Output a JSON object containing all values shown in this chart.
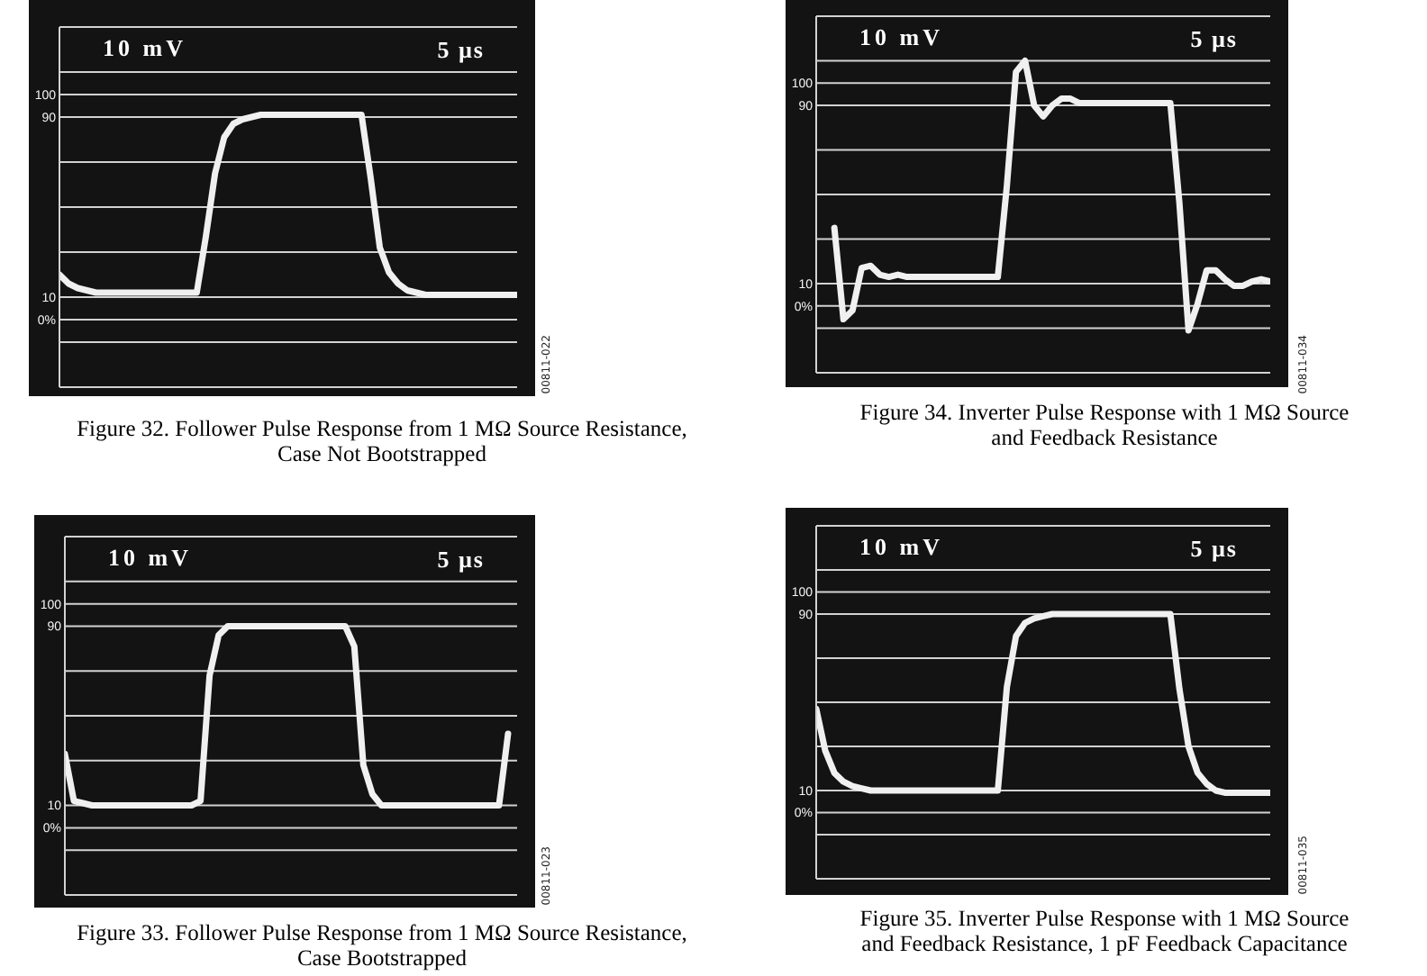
{
  "chart_data": [
    {
      "type": "line",
      "title": "Figure 32. Follower Pulse Response from 1 MΩ Source Resistance,\nCase Not Bootstrapped",
      "annotations": [
        "10 mV",
        "5 µs",
        "00811-022"
      ],
      "categories": [
        null,
        null,
        null,
        null,
        null,
        null,
        null,
        null,
        null,
        null,
        null,
        null,
        null,
        null,
        null,
        null,
        null,
        null,
        null,
        null,
        null,
        null,
        null,
        null,
        null,
        null,
        null,
        null,
        null,
        null,
        null,
        null,
        null,
        null,
        null,
        null,
        null,
        null,
        null,
        null,
        null,
        null,
        null,
        null,
        null,
        null,
        null,
        null,
        null,
        null,
        null
      ],
      "series": [
        {
          "color": "#f0f0f0",
          "values": [
            20,
            16,
            14,
            13,
            12,
            12,
            12,
            12,
            12,
            12,
            12,
            12,
            12,
            12,
            12,
            12,
            37,
            65,
            81,
            87,
            89,
            90,
            91,
            91,
            91,
            91,
            91,
            91,
            91,
            91,
            91,
            91,
            91,
            91,
            63,
            32,
            21,
            16,
            13,
            12,
            11,
            11,
            11,
            11,
            11,
            11,
            11,
            11,
            11,
            11,
            11
          ]
        }
      ],
      "ylim": [
        -30,
        130
      ],
      "yticks": [
        {
          "value": -30,
          "label": null
        },
        {
          "value": -10,
          "label": null
        },
        {
          "value": 0,
          "label": "0%"
        },
        10,
        {
          "value": 30,
          "label": null
        },
        {
          "value": 50,
          "label": null
        },
        {
          "value": 70,
          "label": null
        },
        90,
        100,
        {
          "value": 110,
          "label": null
        },
        {
          "value": 130,
          "label": null
        }
      ],
      "grid": true,
      "marker": "none",
      "tick_labels": "y"
    },
    {
      "type": "line",
      "title": "Figure 34. Inverter Pulse Response with 1 MΩ Source\nand Feedback Resistance",
      "annotations": [
        "10 mV",
        "5 µs",
        "00811-034"
      ],
      "categories": [
        null,
        null,
        null,
        null,
        null,
        null,
        null,
        null,
        null,
        null,
        null,
        null,
        null,
        null,
        null,
        null,
        null,
        null,
        null,
        null,
        null,
        null,
        null,
        null,
        null,
        null,
        null,
        null,
        null,
        null,
        null,
        null,
        null,
        null,
        null,
        null,
        null,
        null,
        null,
        null,
        null,
        null,
        null,
        null,
        null,
        null,
        null,
        null,
        null,
        null,
        null
      ],
      "series": [
        {
          "color": "#f0f0f0",
          "values": [
            null,
            null,
            35,
            -6,
            -2,
            17,
            18,
            14,
            13,
            14,
            13,
            13,
            13,
            13,
            13,
            13,
            13,
            13,
            13,
            13,
            13,
            54,
            105,
            110,
            90,
            85,
            90,
            93,
            93,
            91,
            91,
            91,
            91,
            91,
            91,
            91,
            91,
            91,
            91,
            91,
            46,
            -11,
            1,
            16,
            16,
            12,
            9,
            9,
            11,
            12,
            11
          ]
        }
      ],
      "ylim": [
        -30,
        130
      ],
      "yticks": [
        {
          "value": -30,
          "label": null
        },
        {
          "value": -10,
          "label": null
        },
        {
          "value": 0,
          "label": "0%"
        },
        10,
        {
          "value": 30,
          "label": null
        },
        {
          "value": 50,
          "label": null
        },
        {
          "value": 70,
          "label": null
        },
        90,
        100,
        {
          "value": 110,
          "label": null
        },
        {
          "value": 130,
          "label": null
        }
      ],
      "grid": true,
      "marker": "none",
      "tick_labels": "y"
    },
    {
      "type": "line",
      "title": "Figure 33. Follower Pulse Response from 1 MΩ Source Resistance,\nCase Bootstrapped",
      "annotations": [
        "10 mV",
        "5 µs",
        "00811-023"
      ],
      "categories": [
        null,
        null,
        null,
        null,
        null,
        null,
        null,
        null,
        null,
        null,
        null,
        null,
        null,
        null,
        null,
        null,
        null,
        null,
        null,
        null,
        null,
        null,
        null,
        null,
        null,
        null,
        null,
        null,
        null,
        null,
        null,
        null,
        null,
        null,
        null,
        null,
        null,
        null,
        null,
        null,
        null,
        null,
        null,
        null,
        null,
        null,
        null,
        null,
        null,
        null,
        null
      ],
      "series": [
        {
          "color": "#f0f0f0",
          "values": [
            33,
            12,
            11,
            10,
            10,
            10,
            10,
            10,
            10,
            10,
            10,
            10,
            10,
            10,
            10,
            12,
            68,
            86,
            90,
            90,
            90,
            90,
            90,
            90,
            90,
            90,
            90,
            90,
            90,
            90,
            90,
            90,
            81,
            28,
            15,
            10,
            10,
            10,
            10,
            10,
            10,
            10,
            10,
            10,
            10,
            10,
            10,
            10,
            10,
            42,
            null
          ]
        }
      ],
      "ylim": [
        -30,
        130
      ],
      "yticks": [
        {
          "value": -30,
          "label": null
        },
        {
          "value": -10,
          "label": null
        },
        {
          "value": 0,
          "label": "0%"
        },
        10,
        {
          "value": 30,
          "label": null
        },
        {
          "value": 50,
          "label": null
        },
        {
          "value": 70,
          "label": null
        },
        90,
        100,
        {
          "value": 110,
          "label": null
        },
        {
          "value": 130,
          "label": null
        }
      ],
      "grid": true,
      "marker": "none",
      "tick_labels": "y"
    },
    {
      "type": "line",
      "title": "Figure 35. Inverter Pulse Response with 1 MΩ Source\nand Feedback Resistance, 1 pF Feedback Capacitance",
      "annotations": [
        "10 mV",
        "5 µs",
        "00811-035"
      ],
      "categories": [
        null,
        null,
        null,
        null,
        null,
        null,
        null,
        null,
        null,
        null,
        null,
        null,
        null,
        null,
        null,
        null,
        null,
        null,
        null,
        null,
        null,
        null,
        null,
        null,
        null,
        null,
        null,
        null,
        null,
        null,
        null,
        null,
        null,
        null,
        null,
        null,
        null,
        null,
        null,
        null,
        null,
        null,
        null,
        null,
        null,
        null,
        null,
        null,
        null,
        null,
        null
      ],
      "series": [
        {
          "color": "#f0f0f0",
          "values": [
            47,
            28,
            18,
            14,
            12,
            11,
            10,
            10,
            10,
            10,
            10,
            10,
            10,
            10,
            10,
            10,
            10,
            10,
            10,
            10,
            10,
            57,
            80,
            86,
            88,
            89,
            90,
            90,
            90,
            90,
            90,
            90,
            90,
            90,
            90,
            90,
            90,
            90,
            90,
            90,
            56,
            30,
            18,
            13,
            10,
            9,
            9,
            9,
            9,
            9,
            9
          ]
        }
      ],
      "ylim": [
        -30,
        130
      ],
      "yticks": [
        {
          "value": -30,
          "label": null
        },
        {
          "value": -10,
          "label": null
        },
        {
          "value": 0,
          "label": "0%"
        },
        10,
        {
          "value": 30,
          "label": null
        },
        {
          "value": 50,
          "label": null
        },
        {
          "value": 70,
          "label": null
        },
        90,
        100,
        {
          "value": 110,
          "label": null
        },
        {
          "value": 130,
          "label": null
        }
      ],
      "grid": true,
      "marker": "none",
      "tick_labels": "y"
    }
  ]
}
